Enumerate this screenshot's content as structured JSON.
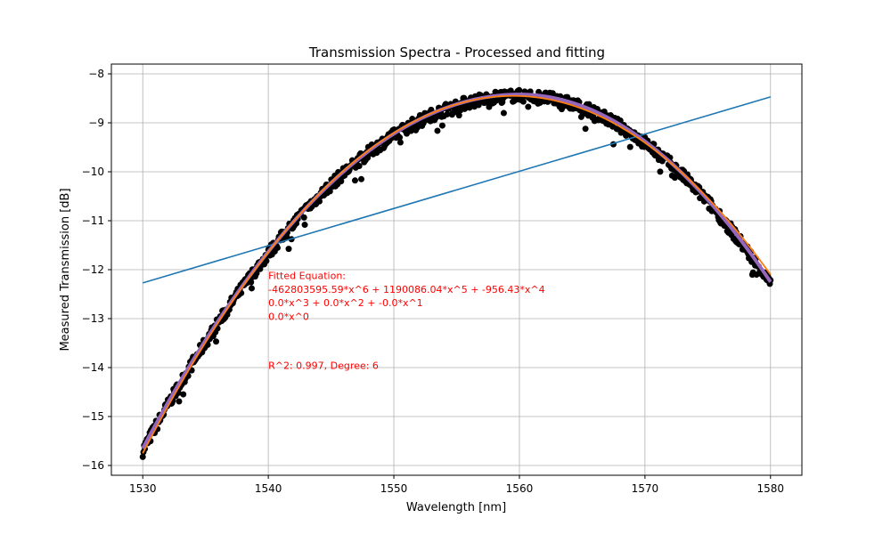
{
  "chart_data": {
    "type": "line",
    "title": "Transmission Spectra - Processed and fitting",
    "xlabel": "Wavelength [nm]",
    "ylabel": "Measured Transmission [dB]",
    "xlim": [
      1527.5,
      1582.5
    ],
    "ylim": [
      -16.2,
      -7.8
    ],
    "xticks": [
      1530,
      1540,
      1550,
      1560,
      1570,
      1580
    ],
    "yticks": [
      -16,
      -15,
      -14,
      -13,
      -12,
      -11,
      -10,
      -9,
      -8
    ],
    "xtick_labels": [
      "1530",
      "1540",
      "1550",
      "1560",
      "1570",
      "1580"
    ],
    "ytick_labels": [
      "−16",
      "−15",
      "−14",
      "−13",
      "−12",
      "−11",
      "−10",
      "−9",
      "−8"
    ],
    "grid": true,
    "colors": {
      "data": "#000000",
      "linear": "#1f77b4",
      "fit": "#ff7f0e",
      "smooth": "#9467bd",
      "annotation": "#ff0000"
    },
    "series": [
      {
        "kind": "scatter",
        "x_start": 1530,
        "x_end": 1580,
        "peak_x": 1560,
        "peak_y": -8.45,
        "y_at_start": -15.7,
        "y_at_end": -12.3,
        "noise_db": 0.25,
        "marker_size": 7
      },
      {
        "kind": "line",
        "x": [
          1530,
          1580
        ],
        "y": [
          -12.27,
          -8.47
        ]
      },
      {
        "kind": "line",
        "x_start": 1530,
        "x_end": 1580,
        "peak_x": 1559.5,
        "peak_y": -8.45,
        "y_at_start": -15.75,
        "y_at_end": -12.1
      },
      {
        "kind": "line",
        "x_start": 1530,
        "x_end": 1580,
        "peak_x": 1560,
        "peak_y": -8.42,
        "y_at_start": -15.65,
        "y_at_end": -12.25
      }
    ],
    "annotations": [
      "Fitted Equation:",
      "-462803595.59*x^6 + 1190086.04*x^5 + -956.43*x^4",
      "0.0*x^3 + 0.0*x^2 + -0.0*x^1",
      "0.0*x^0",
      "R^2: 0.997, Degree: 6"
    ],
    "annotation_positions": [
      {
        "x": 1540,
        "y": -12.12
      },
      {
        "x": 1540,
        "y": -12.4
      },
      {
        "x": 1540,
        "y": -12.67
      },
      {
        "x": 1540,
        "y": -12.95
      },
      {
        "x": 1540,
        "y": -13.95
      }
    ]
  }
}
